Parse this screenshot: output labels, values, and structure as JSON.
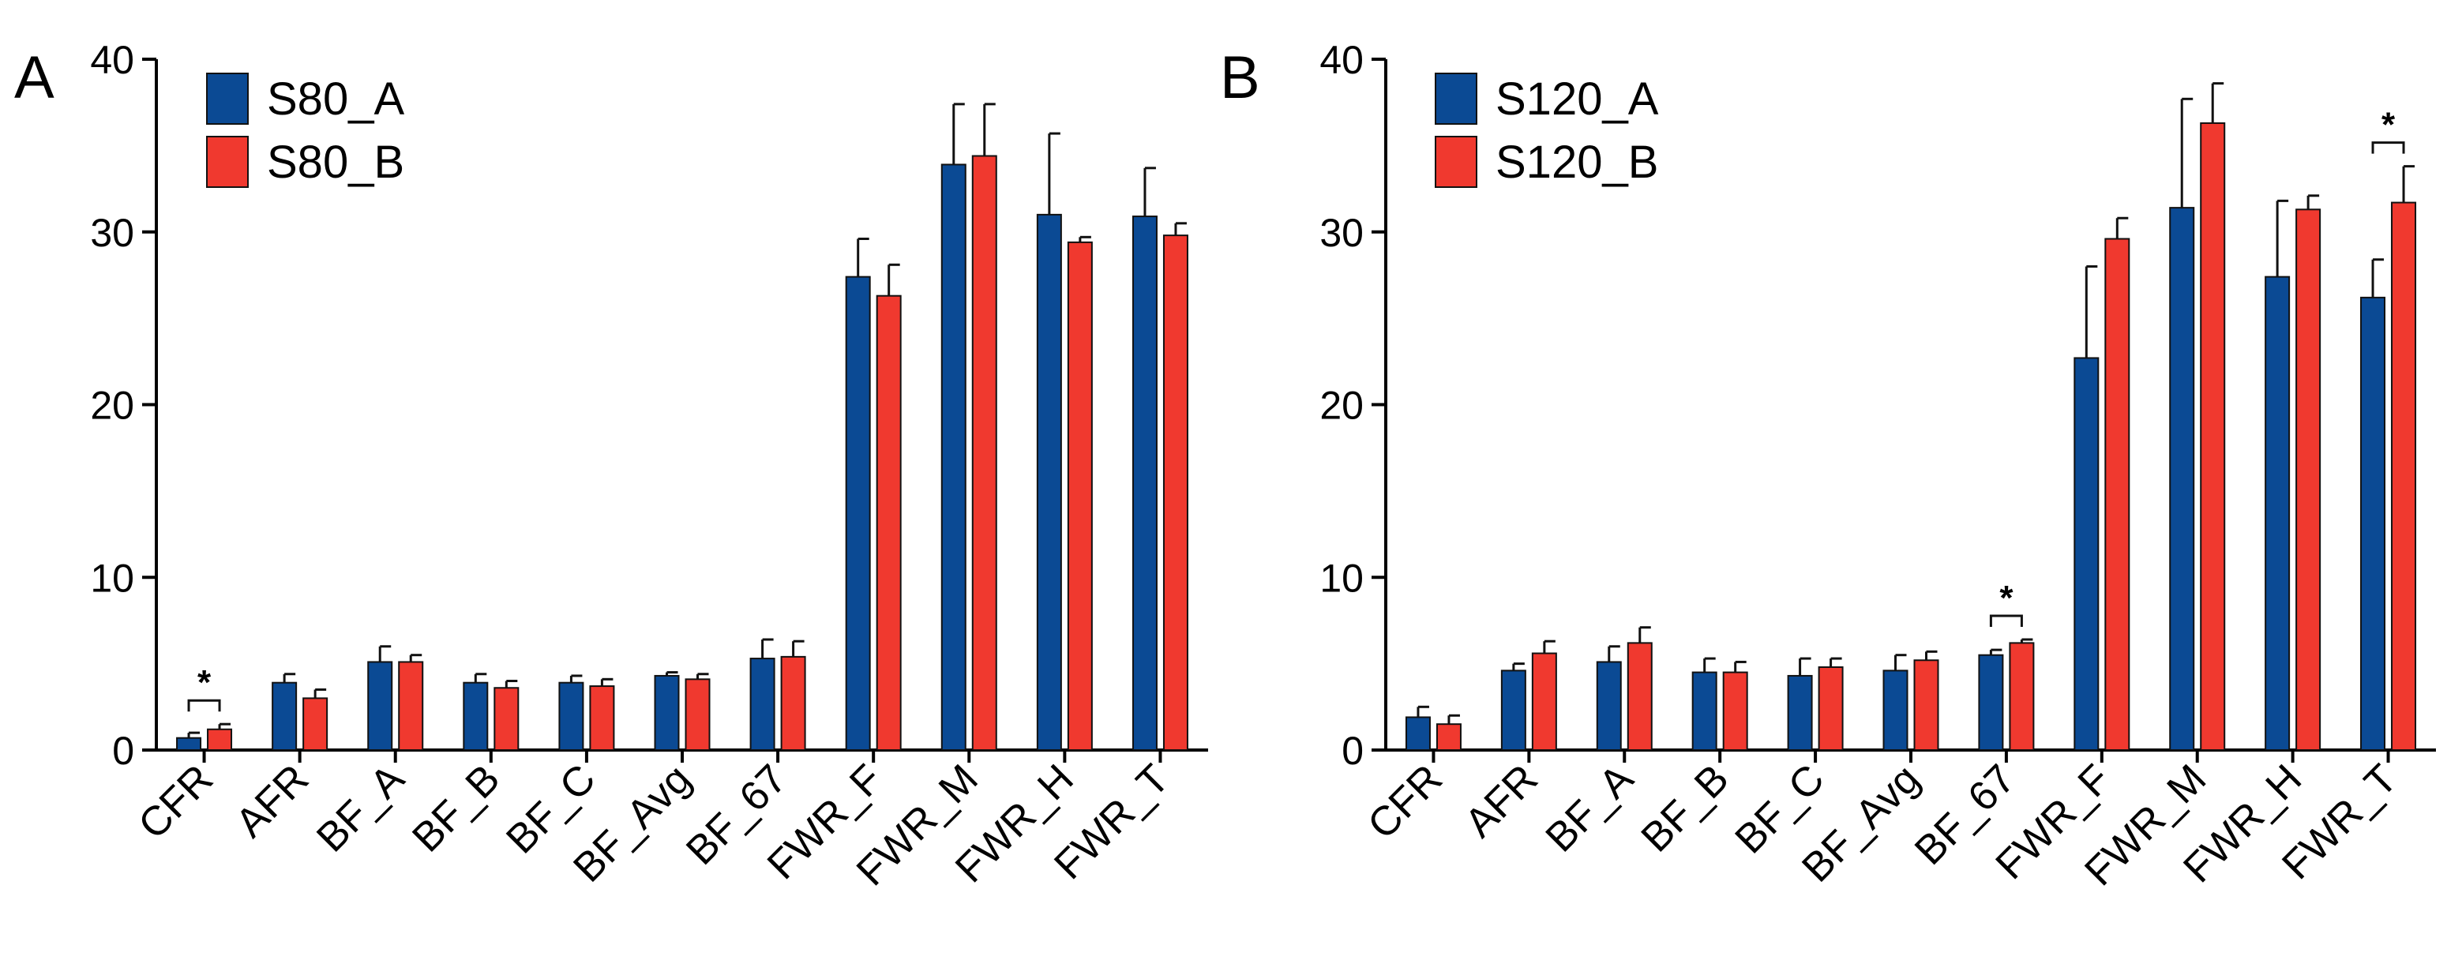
{
  "colors": {
    "series_a": "#0b4a94",
    "series_b": "#f0392f",
    "axis": "#000000"
  },
  "chart_data": [
    {
      "panel": "A",
      "type": "bar",
      "categories": [
        "CFR",
        "AFR",
        "BF_A",
        "BF_B",
        "BF_C",
        "BF_Avg",
        "BF_67",
        "FWR_F",
        "FWR_M",
        "FWR_H",
        "FWR_T"
      ],
      "ylim": [
        0,
        40
      ],
      "yticks": [
        0,
        10,
        20,
        30,
        40
      ],
      "legend_position": "top-left",
      "series": [
        {
          "name": "S80_A",
          "color": "#0b4a94",
          "values": [
            0.7,
            3.9,
            5.1,
            3.9,
            3.9,
            4.3,
            5.3,
            27.4,
            33.9,
            31.0,
            30.9
          ],
          "errors": [
            0.3,
            0.5,
            0.9,
            0.5,
            0.4,
            0.2,
            1.1,
            2.2,
            3.5,
            4.7,
            2.8
          ]
        },
        {
          "name": "S80_B",
          "color": "#f0392f",
          "values": [
            1.2,
            3.0,
            5.1,
            3.6,
            3.7,
            4.1,
            5.4,
            26.3,
            34.4,
            29.4,
            29.8
          ],
          "errors": [
            0.3,
            0.5,
            0.4,
            0.4,
            0.4,
            0.3,
            0.9,
            1.8,
            3.0,
            0.3,
            0.7
          ]
        }
      ],
      "significance": [
        {
          "category_index": 0,
          "label": "*"
        }
      ]
    },
    {
      "panel": "B",
      "type": "bar",
      "categories": [
        "CFR",
        "AFR",
        "BF_A",
        "BF_B",
        "BF_C",
        "BF_Avg",
        "BF_67",
        "FWR_F",
        "FWR_M",
        "FWR_H",
        "FWR_T"
      ],
      "ylim": [
        0,
        40
      ],
      "yticks": [
        0,
        10,
        20,
        30,
        40
      ],
      "legend_position": "top-left",
      "series": [
        {
          "name": "S120_A",
          "color": "#0b4a94",
          "values": [
            1.9,
            4.6,
            5.1,
            4.5,
            4.3,
            4.6,
            5.5,
            22.7,
            31.4,
            27.4,
            26.2
          ],
          "errors": [
            0.6,
            0.4,
            0.9,
            0.8,
            1.0,
            0.9,
            0.3,
            5.3,
            6.3,
            4.4,
            2.2
          ]
        },
        {
          "name": "S120_B",
          "color": "#f0392f",
          "values": [
            1.5,
            5.6,
            6.2,
            4.5,
            4.8,
            5.2,
            6.2,
            29.6,
            36.3,
            31.3,
            31.7
          ],
          "errors": [
            0.5,
            0.7,
            0.9,
            0.6,
            0.5,
            0.5,
            0.2,
            1.2,
            2.3,
            0.8,
            2.1
          ]
        }
      ],
      "significance": [
        {
          "category_index": 6,
          "label": "*"
        },
        {
          "category_index": 10,
          "label": "*"
        }
      ]
    }
  ]
}
